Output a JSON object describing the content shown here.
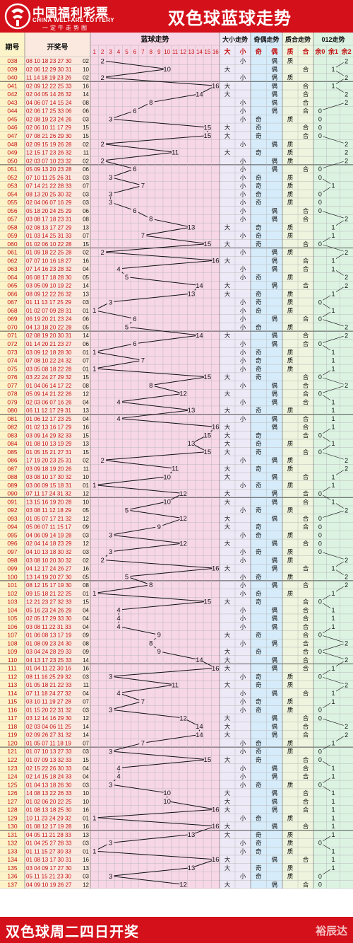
{
  "header": {
    "brand_cn": "中国福利彩票",
    "brand_en": "CHINA WELFARE LOTTERY",
    "slogan": "一定牛走势图",
    "title": "双色球蓝球走势"
  },
  "footer": {
    "text": "双色球周二四日开奖",
    "watermark": "裕辰达"
  },
  "columns": {
    "issue": "期号",
    "numbers": "开奖号",
    "blue_trend": "蓝球走势",
    "size": "大小走势",
    "parity": "奇偶走势",
    "prime": "质合走势",
    "mod3": "012走势",
    "size_sub": [
      "大",
      "小"
    ],
    "parity_sub": [
      "奇",
      "偶"
    ],
    "prime_sub": [
      "质",
      "合"
    ],
    "mod3_sub": [
      "余0",
      "余1",
      "余2"
    ]
  },
  "colors": {
    "brand_red": "#d4101a",
    "text_red": "#c41010",
    "text_black": "#111111",
    "grid_line": "#b9b9b9",
    "issue_bg": "#fdf3c8",
    "numbers_bg": "#fbe9df",
    "trend_bg": "#f7d6e6",
    "size_bg": "#eee9f6",
    "parity_bg": "#d6ecfa",
    "prime_bg": "#eef4dd",
    "mod3_bg": "#dcf3e2"
  },
  "chart_data": {
    "type": "line",
    "title": "双色球蓝球走势",
    "x_axis": [
      1,
      2,
      3,
      4,
      5,
      6,
      7,
      8,
      9,
      10,
      11,
      12,
      13,
      14,
      15,
      16
    ],
    "draws": [
      {
        "issue": "038",
        "reds": "08 10 18 23 27 30",
        "blue": 2
      },
      {
        "issue": "039",
        "reds": "02 06 12 29 30 31",
        "blue": 10
      },
      {
        "issue": "040",
        "reds": "11 14 18 19 23 26",
        "blue": 2
      },
      {
        "issue": "041",
        "reds": "02 09 12 22 25 33",
        "blue": 16
      },
      {
        "issue": "042",
        "reds": "02 04 05 14 26 32",
        "blue": 14
      },
      {
        "issue": "043",
        "reds": "04 06 07 14 15 24",
        "blue": 8
      },
      {
        "issue": "044",
        "reds": "02 06 17 25 33 06",
        "blue": 6
      },
      {
        "issue": "045",
        "reds": "02 08 19 23 24 26",
        "blue": 3
      },
      {
        "issue": "046",
        "reds": "02 06 10 11 17 29",
        "blue": 15
      },
      {
        "issue": "047",
        "reds": "07 08 21 26 29 30",
        "blue": 15
      },
      {
        "issue": "048",
        "reds": "02 09 15 19 26 28",
        "blue": 2
      },
      {
        "issue": "049",
        "reds": "12 15 17 23 26 32",
        "blue": 11
      },
      {
        "issue": "050",
        "reds": "02 03 07 10 23 32",
        "blue": 2
      },
      {
        "issue": "051",
        "reds": "05 09 13 20 23 28",
        "blue": 6
      },
      {
        "issue": "052",
        "reds": "07 10 11 25 26 31",
        "blue": 3
      },
      {
        "issue": "053",
        "reds": "07 14 21 22 28 33",
        "blue": 7
      },
      {
        "issue": "054",
        "reds": "08 13 20 25 30 32",
        "blue": 3
      },
      {
        "issue": "055",
        "reds": "02 04 06 07 16 29",
        "blue": 3
      },
      {
        "issue": "056",
        "reds": "05 18 20 24 25 29",
        "blue": 6
      },
      {
        "issue": "057",
        "reds": "03 08 17 18 23 31",
        "blue": 8
      },
      {
        "issue": "058",
        "reds": "02 08 13 17 27 29",
        "blue": 13
      },
      {
        "issue": "059",
        "reds": "01 03 14 25 31 33",
        "blue": 7
      },
      {
        "issue": "060",
        "reds": "01 02 06 10 22 28",
        "blue": 15
      },
      {
        "issue": "061",
        "reds": "01 09 18 22 25 28",
        "blue": 2
      },
      {
        "issue": "062",
        "reds": "07 07 10 16 18 27",
        "blue": 16
      },
      {
        "issue": "063",
        "reds": "07 14 16 23 28 32",
        "blue": 4
      },
      {
        "issue": "064",
        "reds": "06 08 17 18 28 30",
        "blue": 5
      },
      {
        "issue": "065",
        "reds": "03 05 09 10 19 22",
        "blue": 14
      },
      {
        "issue": "066",
        "reds": "08 09 12 22 26 32",
        "blue": 13
      },
      {
        "issue": "067",
        "reds": "01 11 13 17 25 29",
        "blue": 3
      },
      {
        "issue": "068",
        "reds": "01 02 07 09 28 31",
        "blue": 1
      },
      {
        "issue": "069",
        "reds": "06 19 20 21 23 24",
        "blue": 6
      },
      {
        "issue": "070",
        "reds": "04 13 18 20 22 28",
        "blue": 5
      },
      {
        "issue": "071",
        "reds": "02 08 19 20 30 31",
        "blue": 14
      },
      {
        "issue": "072",
        "reds": "01 14 20 21 23 27",
        "blue": 6
      },
      {
        "issue": "073",
        "reds": "03 09 12 18 28 30",
        "blue": 1
      },
      {
        "issue": "074",
        "reds": "07 08 10 22 24 32",
        "blue": 7
      },
      {
        "issue": "075",
        "reds": "03 05 08 18 22 28",
        "blue": 1
      },
      {
        "issue": "076",
        "reds": "03 22 24 27 29 32",
        "blue": 15
      },
      {
        "issue": "077",
        "reds": "01 04 06 14 17 22",
        "blue": 8
      },
      {
        "issue": "078",
        "reds": "05 09 14 21 22 26",
        "blue": 12
      },
      {
        "issue": "079",
        "reds": "02 03 06 07 16 26",
        "blue": 4
      },
      {
        "issue": "080",
        "reds": "06 11 12 17 29 31",
        "blue": 13
      },
      {
        "issue": "081",
        "reds": "01 06 12 17 23 25",
        "blue": 4
      },
      {
        "issue": "082",
        "reds": "01 02 13 16 17 29",
        "blue": 16
      },
      {
        "issue": "083",
        "reds": "03 09 14 29 32 33",
        "blue": 15
      },
      {
        "issue": "084",
        "reds": "01 08 10 13 19 29",
        "blue": 13
      },
      {
        "issue": "085",
        "reds": "01 05 15 21 27 31",
        "blue": 15
      },
      {
        "issue": "086",
        "reds": "17 19 20 23 25 31",
        "blue": 2
      },
      {
        "issue": "087",
        "reds": "03 09 18 19 20 26",
        "blue": 11
      },
      {
        "issue": "088",
        "reds": "03 08 10 17 30 32",
        "blue": 10
      },
      {
        "issue": "089",
        "reds": "03 06 09 15 18 31",
        "blue": 1
      },
      {
        "issue": "090",
        "reds": "07 11 17 24 31 32",
        "blue": 12
      },
      {
        "issue": "091",
        "reds": "13 15 16 19 20 28",
        "blue": 10
      },
      {
        "issue": "092",
        "reds": "03 08 11 12 18 29",
        "blue": 5
      },
      {
        "issue": "093",
        "reds": "01 05 07 17 21 32",
        "blue": 12
      },
      {
        "issue": "094",
        "reds": "05 06 07 11 15 17",
        "blue": 9
      },
      {
        "issue": "095",
        "reds": "04 06 09 14 19 28",
        "blue": 3
      },
      {
        "issue": "096",
        "reds": "02 04 14 18 23 29",
        "blue": 12
      },
      {
        "issue": "097",
        "reds": "04 10 13 18 30 32",
        "blue": 3
      },
      {
        "issue": "098",
        "reds": "03 08 10 20 30 32",
        "blue": 2
      },
      {
        "issue": "099",
        "reds": "04 12 17 24 26 27",
        "blue": 16
      },
      {
        "issue": "100",
        "reds": "13 14 19 20 27 30",
        "blue": 5
      },
      {
        "issue": "101",
        "reds": "08 12 15 17 19 30",
        "blue": 8
      },
      {
        "issue": "102",
        "reds": "09 15 18 21 22 25",
        "blue": 1
      },
      {
        "issue": "103",
        "reds": "12 21 23 27 32 33",
        "blue": 15
      },
      {
        "issue": "104",
        "reds": "05 16 23 24 26 29",
        "blue": 4
      },
      {
        "issue": "105",
        "reds": "02 05 17 29 33 30",
        "blue": 4
      },
      {
        "issue": "106",
        "reds": "03 08 11 22 31 33",
        "blue": 4
      },
      {
        "issue": "107",
        "reds": "01 06 08 13 17 19",
        "blue": 9
      },
      {
        "issue": "108",
        "reds": "01 08 09 23 24 30",
        "blue": 8
      },
      {
        "issue": "109",
        "reds": "03 04 24 28 29 33",
        "blue": 9
      },
      {
        "issue": "110",
        "reds": "04 13 17 23 25 33",
        "blue": 14
      },
      {
        "issue": "111",
        "reds": "01 04 11 22 30 16",
        "blue": 16
      },
      {
        "issue": "112",
        "reds": "08 11 16 25 29 32",
        "blue": 3
      },
      {
        "issue": "113",
        "reds": "01 05 18 21 22 33",
        "blue": 11
      },
      {
        "issue": "114",
        "reds": "07 11 18 24 27 32",
        "blue": 4
      },
      {
        "issue": "115",
        "reds": "03 10 11 19 27 28",
        "blue": 7
      },
      {
        "issue": "116",
        "reds": "01 15 20 22 31 32",
        "blue": 3
      },
      {
        "issue": "117",
        "reds": "03 12 14 16 29 30",
        "blue": 12
      },
      {
        "issue": "118",
        "reds": "02 03 04 06 11 25",
        "blue": 14
      },
      {
        "issue": "119",
        "reds": "02 09 26 27 31 32",
        "blue": 14
      },
      {
        "issue": "120",
        "reds": "01 05 07 11 18 19",
        "blue": 7
      },
      {
        "issue": "121",
        "reds": "01 07 10 13 27 33",
        "blue": 3
      },
      {
        "issue": "122",
        "reds": "01 07 09 13 32 33",
        "blue": 15
      },
      {
        "issue": "123",
        "reds": "02 15 22 26 30 33",
        "blue": 4
      },
      {
        "issue": "124",
        "reds": "02 14 15 18 24 33",
        "blue": 4
      },
      {
        "issue": "125",
        "reds": "01 04 13 18 26 30",
        "blue": 3
      },
      {
        "issue": "126",
        "reds": "14 08 13 22 26 33",
        "blue": 10
      },
      {
        "issue": "127",
        "reds": "01 02 06 20 22 25",
        "blue": 10
      },
      {
        "issue": "128",
        "reds": "01 08 13 18 25 30",
        "blue": 16
      },
      {
        "issue": "129",
        "reds": "10 11 23 24 29 32",
        "blue": 1
      },
      {
        "issue": "130",
        "reds": "01 08 12 17 19 28",
        "blue": 16
      },
      {
        "issue": "131",
        "reds": "04 05 11 21 28 33",
        "blue": 13
      },
      {
        "issue": "132",
        "reds": "01 04 25 27 28 33",
        "blue": 3
      },
      {
        "issue": "133",
        "reds": "01 11 15 27 30 33",
        "blue": 1
      },
      {
        "issue": "134",
        "reds": "01 08 13 17 30 31",
        "blue": 16
      },
      {
        "issue": "135",
        "reds": "03 04 09 17 27 30",
        "blue": 13
      },
      {
        "issue": "136",
        "reds": "05 11 15 21 23 30",
        "blue": 3
      },
      {
        "issue": "137",
        "reds": "04 09 10 19 26 27",
        "blue": 12
      }
    ]
  }
}
